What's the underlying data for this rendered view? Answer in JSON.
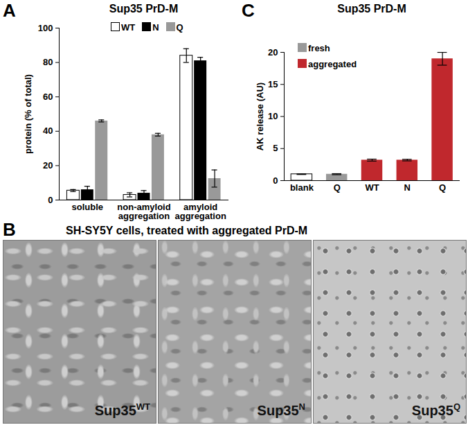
{
  "chart_data": [
    {
      "panel_label": "A",
      "type": "bar",
      "title": "Sup35 PrD-M",
      "y_label": "protein (% of total)",
      "categories": [
        "soluble",
        "non-amyloid\naggregation",
        "amyloid\naggregation"
      ],
      "series": [
        {
          "name": "WT",
          "color": "#ffffff",
          "values": [
            5.5,
            3,
            84
          ],
          "errors": [
            0.6,
            1.2,
            4
          ]
        },
        {
          "name": "N",
          "color": "#000000",
          "values": [
            6,
            4,
            81
          ],
          "errors": [
            2,
            1.5,
            2
          ]
        },
        {
          "name": "Q",
          "color": "#999999",
          "values": [
            46,
            38,
            12.5
          ],
          "errors": [
            0.6,
            0.8,
            5
          ]
        }
      ],
      "ylim": [
        0,
        100
      ],
      "yticks": [
        0,
        20,
        40,
        60,
        80,
        100
      ],
      "legend": "top"
    },
    {
      "panel_label": "C",
      "type": "bar",
      "title": "Sup35 PrD-M",
      "y_label": "AK release (AU)",
      "categories": [
        "blank",
        "Q",
        "WT",
        "N",
        "Q"
      ],
      "values": [
        1,
        1,
        3.2,
        3.2,
        19
      ],
      "errors": [
        0.05,
        0.08,
        0.15,
        0.12,
        1
      ],
      "colors": [
        "#ffffff",
        "#999999",
        "#c0282d",
        "#c0282d",
        "#c0282d"
      ],
      "legend_entries": [
        {
          "name": "fresh",
          "color": "#999999"
        },
        {
          "name": "aggregated",
          "color": "#c0282d"
        }
      ],
      "ylim": [
        0,
        20
      ],
      "yticks": [
        0,
        5,
        10,
        15,
        20
      ],
      "legend": "top-left"
    }
  ],
  "images": {
    "panel_label": "B",
    "title": "SH-SY5Y cells, treated with aggregated PrD-M",
    "panels": [
      {
        "label": "Sup35",
        "sup": "WT"
      },
      {
        "label": "Sup35",
        "sup": "N"
      },
      {
        "label": "Sup35",
        "sup": "Q"
      }
    ]
  }
}
